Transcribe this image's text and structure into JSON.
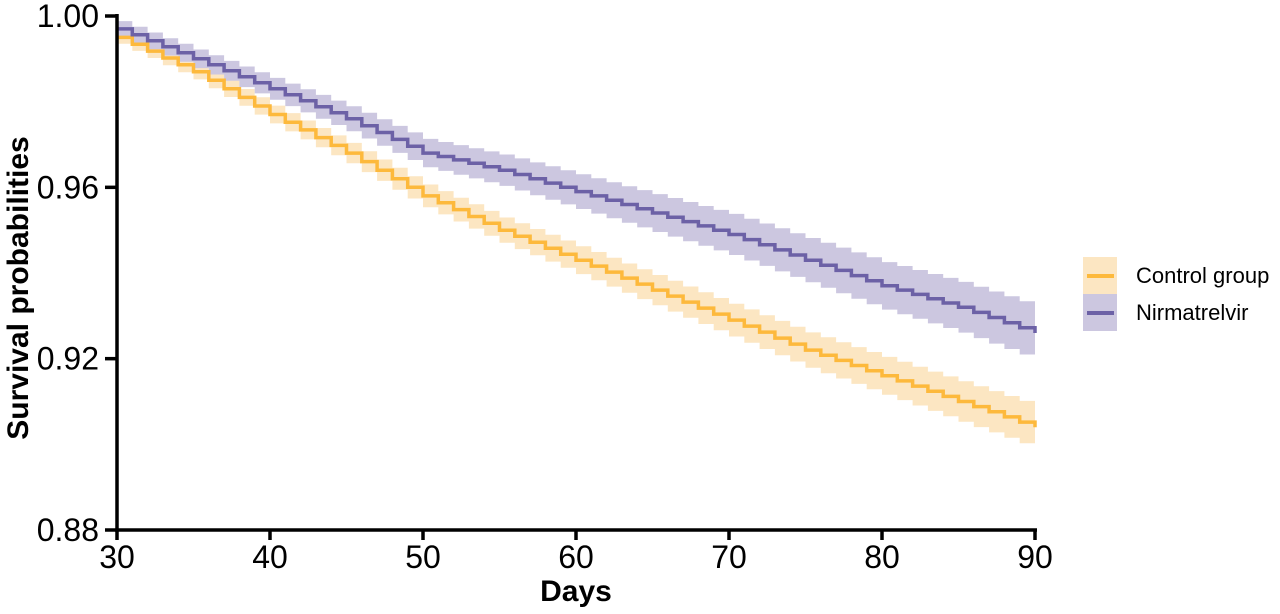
{
  "chart_data": {
    "type": "line",
    "subtype": "kaplan-meier-step",
    "xlabel": "Days",
    "ylabel": "Survival probabilities",
    "xlim": [
      30,
      90
    ],
    "ylim": [
      0.88,
      1.0
    ],
    "x_tick_labels": [
      "30",
      "40",
      "50",
      "60",
      "70",
      "80",
      "90"
    ],
    "y_tick_labels": [
      "1.00",
      "0.96",
      "0.92",
      "0.88"
    ],
    "grid": false,
    "legend_position": "right",
    "axis_color": "#000000",
    "series": [
      {
        "name": "Control group",
        "line_color": "#FDB93C",
        "band_color": "#FCE6C2",
        "start_day": 30,
        "ci_halfwidth_start": 0.0015,
        "ci_halfwidth_end": 0.005,
        "values": [
          0.995,
          0.9934,
          0.9918,
          0.9902,
          0.9886,
          0.987,
          0.985,
          0.983,
          0.981,
          0.979,
          0.977,
          0.9752,
          0.9734,
          0.9716,
          0.9698,
          0.968,
          0.966,
          0.964,
          0.962,
          0.96,
          0.958,
          0.9564,
          0.9548,
          0.9532,
          0.9516,
          0.95,
          0.9486,
          0.9472,
          0.9458,
          0.9444,
          0.943,
          0.9416,
          0.9402,
          0.9388,
          0.9374,
          0.936,
          0.9346,
          0.9332,
          0.9318,
          0.9304,
          0.929,
          0.9276,
          0.9262,
          0.9248,
          0.9234,
          0.922,
          0.9208,
          0.9196,
          0.9184,
          0.9172,
          0.916,
          0.9148,
          0.9136,
          0.9124,
          0.9112,
          0.91,
          0.9088,
          0.9076,
          0.9064,
          0.9052,
          0.904
        ]
      },
      {
        "name": "Nirmatrelvir",
        "line_color": "#6C61A6",
        "band_color": "#CCC7E0",
        "start_day": 30,
        "ci_halfwidth_start": 0.0018,
        "ci_halfwidth_end": 0.0063,
        "values": [
          0.997,
          0.9956,
          0.9942,
          0.9928,
          0.9914,
          0.99,
          0.9886,
          0.9872,
          0.9858,
          0.9844,
          0.983,
          0.9816,
          0.9802,
          0.9788,
          0.9774,
          0.976,
          0.9744,
          0.9728,
          0.9712,
          0.9696,
          0.968,
          0.9672,
          0.9664,
          0.9656,
          0.9648,
          0.964,
          0.963,
          0.962,
          0.961,
          0.96,
          0.959,
          0.958,
          0.957,
          0.956,
          0.955,
          0.954,
          0.953,
          0.952,
          0.951,
          0.95,
          0.949,
          0.9478,
          0.9466,
          0.9454,
          0.9442,
          0.943,
          0.9418,
          0.9406,
          0.9394,
          0.9382,
          0.937,
          0.936,
          0.935,
          0.934,
          0.933,
          0.932,
          0.9308,
          0.9296,
          0.9284,
          0.9272,
          0.926
        ]
      }
    ]
  }
}
